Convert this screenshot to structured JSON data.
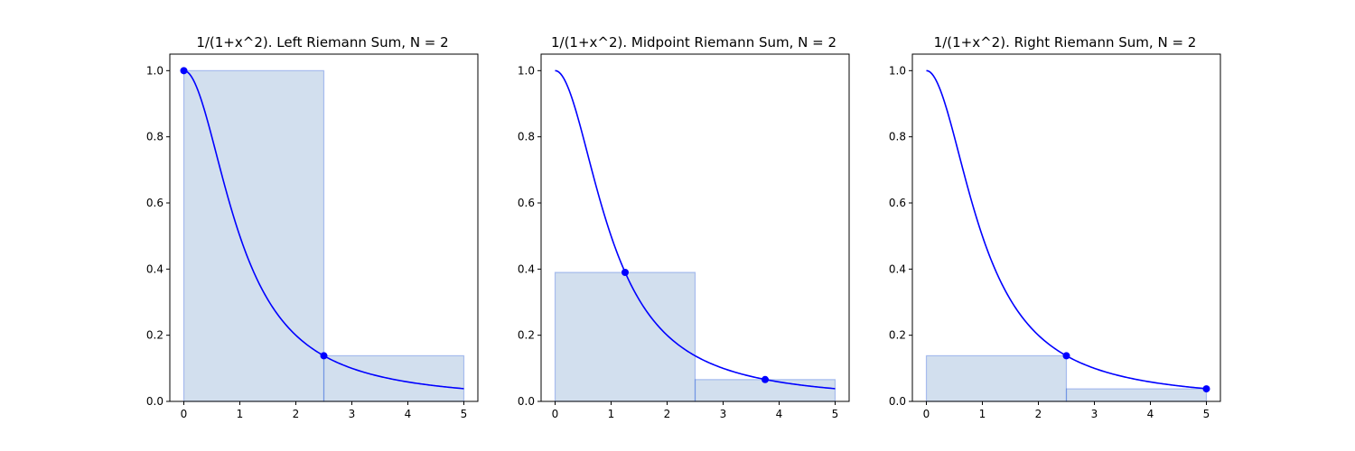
{
  "chart_data": [
    {
      "type": "area",
      "title": "1/(1+x^2). Left Riemann Sum, N = 2",
      "xlim": [
        -0.25,
        5.25
      ],
      "ylim": [
        0.0,
        1.05
      ],
      "x_ticks": [
        0,
        1,
        2,
        3,
        4,
        5
      ],
      "y_ticks": [
        0.0,
        0.2,
        0.4,
        0.6,
        0.8,
        1.0
      ],
      "x_tick_labels": [
        "0",
        "1",
        "2",
        "3",
        "4",
        "5"
      ],
      "y_tick_labels": [
        "0.0",
        "0.2",
        "0.4",
        "0.6",
        "0.8",
        "1.0"
      ],
      "function": "1/(1+x^2)",
      "x_range": [
        0,
        5
      ],
      "rectangles": [
        {
          "x0": 0,
          "x1": 2.5,
          "height": 1.0
        },
        {
          "x0": 2.5,
          "x1": 5,
          "height": 0.138
        }
      ],
      "sample_points": [
        {
          "x": 0,
          "y": 1.0
        },
        {
          "x": 2.5,
          "y": 0.138
        }
      ],
      "colors": {
        "curve": "#0000ff",
        "fill": "#1f5fa8"
      }
    },
    {
      "type": "area",
      "title": "1/(1+x^2). Midpoint Riemann Sum, N = 2",
      "xlim": [
        -0.25,
        5.25
      ],
      "ylim": [
        0.0,
        1.05
      ],
      "x_ticks": [
        0,
        1,
        2,
        3,
        4,
        5
      ],
      "y_ticks": [
        0.0,
        0.2,
        0.4,
        0.6,
        0.8,
        1.0
      ],
      "x_tick_labels": [
        "0",
        "1",
        "2",
        "3",
        "4",
        "5"
      ],
      "y_tick_labels": [
        "0.0",
        "0.2",
        "0.4",
        "0.6",
        "0.8",
        "1.0"
      ],
      "function": "1/(1+x^2)",
      "x_range": [
        0,
        5
      ],
      "rectangles": [
        {
          "x0": 0,
          "x1": 2.5,
          "height": 0.39
        },
        {
          "x0": 2.5,
          "x1": 5,
          "height": 0.066
        }
      ],
      "sample_points": [
        {
          "x": 1.25,
          "y": 0.39
        },
        {
          "x": 3.75,
          "y": 0.066
        }
      ],
      "colors": {
        "curve": "#0000ff",
        "fill": "#1f5fa8"
      }
    },
    {
      "type": "area",
      "title": "1/(1+x^2). Right Riemann Sum, N = 2",
      "xlim": [
        -0.25,
        5.25
      ],
      "ylim": [
        0.0,
        1.05
      ],
      "x_ticks": [
        0,
        1,
        2,
        3,
        4,
        5
      ],
      "y_ticks": [
        0.0,
        0.2,
        0.4,
        0.6,
        0.8,
        1.0
      ],
      "x_tick_labels": [
        "0",
        "1",
        "2",
        "3",
        "4",
        "5"
      ],
      "y_tick_labels": [
        "0.0",
        "0.2",
        "0.4",
        "0.6",
        "0.8",
        "1.0"
      ],
      "function": "1/(1+x^2)",
      "x_range": [
        0,
        5
      ],
      "rectangles": [
        {
          "x0": 0,
          "x1": 2.5,
          "height": 0.138
        },
        {
          "x0": 2.5,
          "x1": 5,
          "height": 0.038
        }
      ],
      "sample_points": [
        {
          "x": 2.5,
          "y": 0.138
        },
        {
          "x": 5,
          "y": 0.038
        }
      ],
      "colors": {
        "curve": "#0000ff",
        "fill": "#1f5fa8"
      }
    }
  ]
}
